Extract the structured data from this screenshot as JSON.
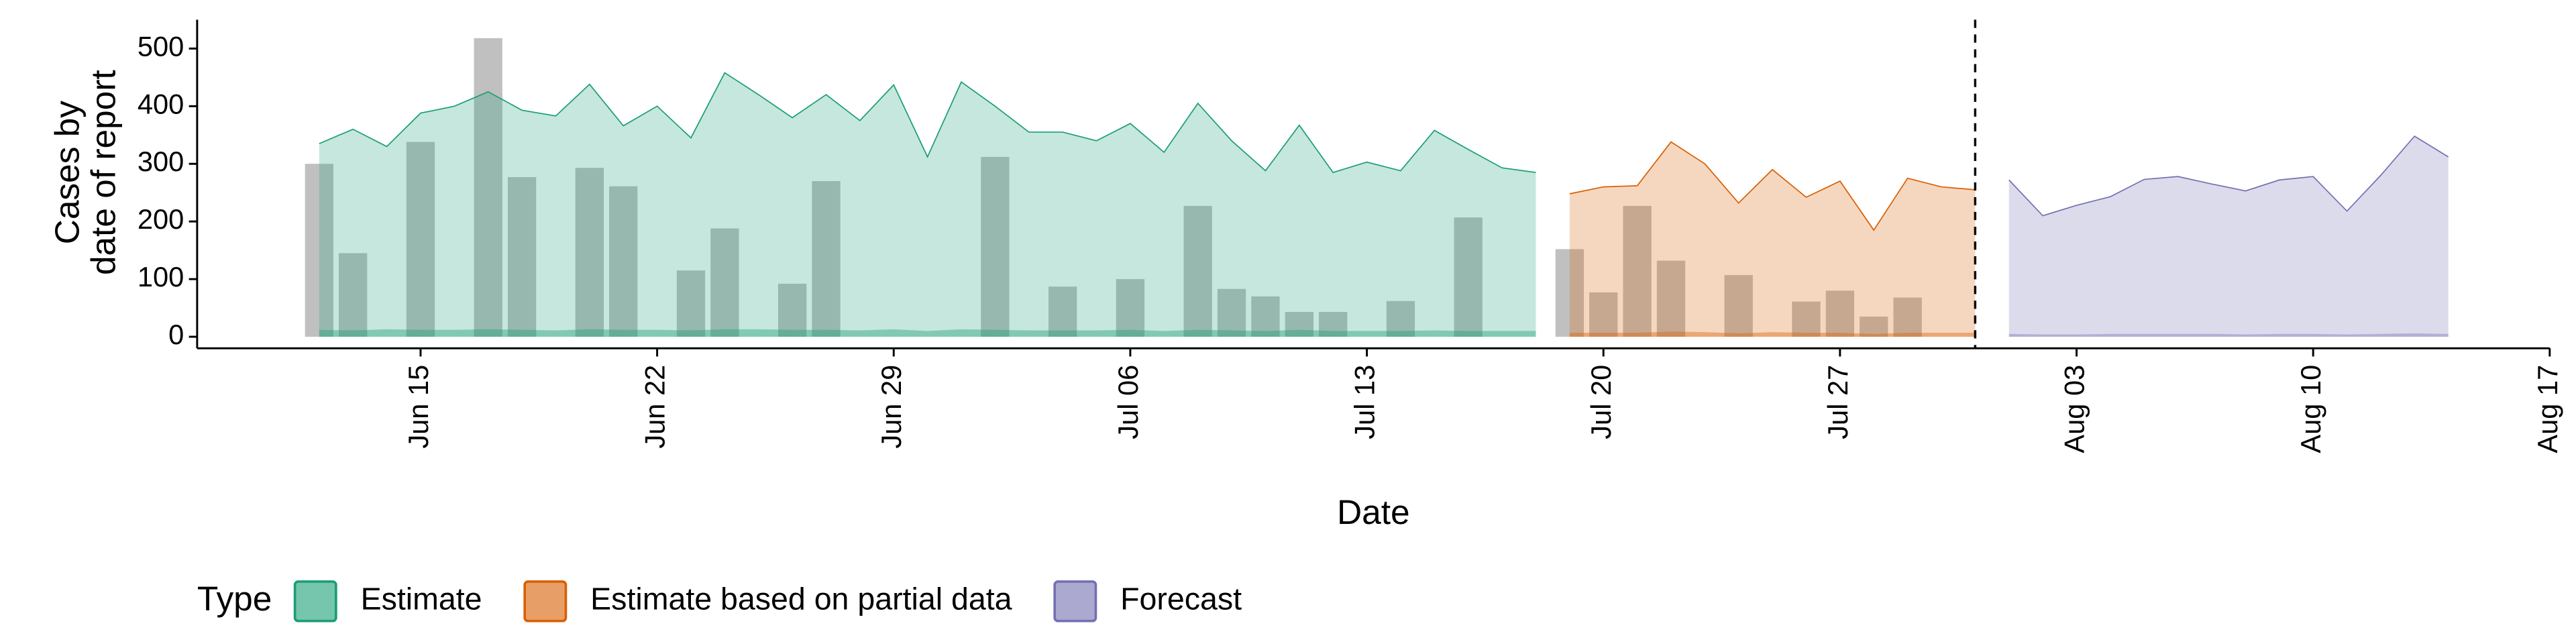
{
  "chart_data": {
    "type": "area",
    "ylabel": [
      "Cases by",
      "date of report"
    ],
    "xlabel": "Date",
    "legend_title": "Type",
    "ylim": [
      -20,
      550
    ],
    "yticks": [
      0,
      100,
      200,
      300,
      400,
      500
    ],
    "xlim": [
      "Jun 8",
      "Aug 17"
    ],
    "xticks": [
      "Jun 15",
      "Jun 22",
      "Jun 29",
      "Jul 06",
      "Jul 13",
      "Jul 20",
      "Jul 27",
      "Aug 03",
      "Aug 10",
      "Aug 17"
    ],
    "vline_x": "Jul 31",
    "bars": {
      "color": "#8c8c8c",
      "x": [
        "Jun 12",
        "Jun 13",
        "Jun 15",
        "Jun 17",
        "Jun 18",
        "Jun 20",
        "Jun 21",
        "Jun 23",
        "Jun 24",
        "Jun 26",
        "Jun 27",
        "Jul 2",
        "Jul 4",
        "Jul 6",
        "Jul 8",
        "Jul 9",
        "Jul 10",
        "Jul 11",
        "Jul 12",
        "Jul 14",
        "Jul 16",
        "Jul 19",
        "Jul 20",
        "Jul 21",
        "Jul 22",
        "Jul 24",
        "Jul 26",
        "Jul 27",
        "Jul 28",
        "Jul 29"
      ],
      "values": [
        300,
        145,
        338,
        518,
        277,
        293,
        261,
        115,
        188,
        92,
        270,
        312,
        87,
        100,
        227,
        83,
        70,
        43,
        43,
        62,
        207,
        152,
        77,
        227,
        132,
        107,
        61,
        80,
        35,
        68
      ]
    },
    "series": [
      {
        "name": "Estimate",
        "color": "#1b9e77",
        "x": [
          "Jun 12",
          "Jun 13",
          "Jun 14",
          "Jun 15",
          "Jun 16",
          "Jun 17",
          "Jun 18",
          "Jun 19",
          "Jun 20",
          "Jun 21",
          "Jun 22",
          "Jun 23",
          "Jun 24",
          "Jun 25",
          "Jun 26",
          "Jun 27",
          "Jun 28",
          "Jun 29",
          "Jun 30",
          "Jul 1",
          "Jul 2",
          "Jul 3",
          "Jul 4",
          "Jul 5",
          "Jul 6",
          "Jul 7",
          "Jul 8",
          "Jul 9",
          "Jul 10",
          "Jul 11",
          "Jul 12",
          "Jul 13",
          "Jul 14",
          "Jul 15",
          "Jul 16",
          "Jul 17",
          "Jul 18"
        ],
        "values": [
          335,
          360,
          330,
          388,
          400,
          425,
          393,
          383,
          438,
          366,
          400,
          345,
          458,
          420,
          380,
          420,
          375,
          437,
          312,
          442,
          400,
          355,
          355,
          340,
          370,
          320,
          405,
          340,
          288,
          367,
          285,
          303,
          288,
          358,
          325,
          293,
          285
        ],
        "inner": [
          12,
          11,
          13,
          12,
          12,
          13,
          12,
          11,
          13,
          12,
          12,
          11,
          13,
          13,
          12,
          12,
          11,
          13,
          10,
          13,
          12,
          11,
          11,
          11,
          12,
          10,
          12,
          11,
          10,
          12,
          10,
          10,
          10,
          11,
          10,
          10,
          10
        ]
      },
      {
        "name": "Estimate based on partial data",
        "color": "#d95f02",
        "x": [
          "Jul 19",
          "Jul 20",
          "Jul 21",
          "Jul 22",
          "Jul 23",
          "Jul 24",
          "Jul 25",
          "Jul 26",
          "Jul 27",
          "Jul 28",
          "Jul 29",
          "Jul 30",
          "Jul 31"
        ],
        "values": [
          248,
          260,
          262,
          338,
          300,
          232,
          290,
          242,
          270,
          185,
          275,
          260,
          255
        ],
        "inner": [
          7,
          7,
          7,
          9,
          8,
          6,
          8,
          7,
          7,
          5,
          7,
          7,
          7
        ]
      },
      {
        "name": "Forecast",
        "color": "#7570b3",
        "x": [
          "Aug 1",
          "Aug 2",
          "Aug 3",
          "Aug 4",
          "Aug 5",
          "Aug 6",
          "Aug 7",
          "Aug 8",
          "Aug 9",
          "Aug 10",
          "Aug 11",
          "Aug 12",
          "Aug 13",
          "Aug 14"
        ],
        "values": [
          272,
          210,
          228,
          243,
          273,
          278,
          265,
          253,
          272,
          278,
          218,
          280,
          348,
          312
        ],
        "inner": [
          5,
          4,
          4,
          5,
          5,
          5,
          5,
          4,
          5,
          5,
          4,
          5,
          6,
          5
        ]
      }
    ]
  }
}
